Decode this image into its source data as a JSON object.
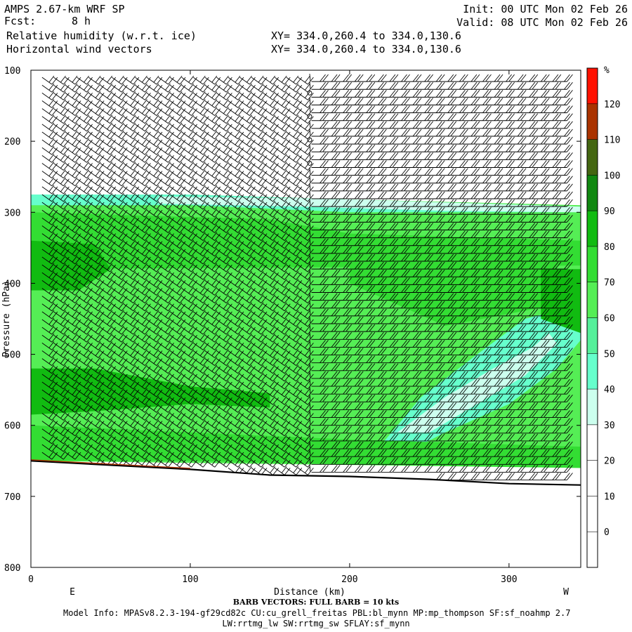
{
  "header": {
    "model": "AMPS 2.67-km WRF SP",
    "fcst_label": "Fcst:",
    "fcst_value": "8 h",
    "field1": "Relative humidity (w.r.t. ice)",
    "field2": "Horizontal wind vectors",
    "xy1": "XY= 334.0,260.4 to 334.0,130.6",
    "xy2": "XY= 334.0,260.4 to 334.0,130.6",
    "init": "Init: 00 UTC Mon 02 Feb 26",
    "valid": "Valid: 08 UTC Mon 02 Feb 26"
  },
  "footer": {
    "barb_note": "BARB VECTORS: FULL BARB = 10 kts",
    "model_info": "Model Info: MPASv8.2.3-194-gf29cd82c CU:cu_grell_freitas PBL:bl_mynn MP:mp_thompson SF:sf_noahmp 2.7",
    "model_info2": "LW:rrtmg_lw SW:rrtmg_sw SFLAY:sf_mynn"
  },
  "chart_data": {
    "type": "heatmap",
    "title": "Relative humidity (w.r.t. ice)",
    "xlabel": "Distance (km)",
    "ylabel": "Pressure (hPa)",
    "xlim": [
      0,
      345
    ],
    "ylim": [
      800,
      100
    ],
    "x_ticks": [
      0,
      100,
      200,
      300
    ],
    "y_ticks": [
      100,
      200,
      300,
      400,
      500,
      600,
      700,
      800
    ],
    "x_end_labels": {
      "left": "E",
      "right": "W"
    },
    "colorbar": {
      "unit": "%",
      "labels": [
        0,
        10,
        20,
        30,
        40,
        50,
        60,
        70,
        80,
        90,
        100,
        110,
        120
      ],
      "bins": [
        {
          "lo": -10,
          "hi": 30,
          "color": "#ffffff"
        },
        {
          "lo": 30,
          "hi": 40,
          "color": "#ccffee"
        },
        {
          "lo": 40,
          "hi": 50,
          "color": "#66ffcc"
        },
        {
          "lo": 50,
          "hi": 60,
          "color": "#55f09a"
        },
        {
          "lo": 60,
          "hi": 70,
          "color": "#55ee55"
        },
        {
          "lo": 70,
          "hi": 80,
          "color": "#33dd33"
        },
        {
          "lo": 80,
          "hi": 90,
          "color": "#11bb11"
        },
        {
          "lo": 90,
          "hi": 100,
          "color": "#118811"
        },
        {
          "lo": 100,
          "hi": 110,
          "color": "#446611"
        },
        {
          "lo": 110,
          "hi": 120,
          "color": "#aa3300"
        },
        {
          "lo": 120,
          "hi": 130,
          "color": "#ff1100"
        }
      ]
    },
    "rh_regions": [
      {
        "name": "mid-troposphere moist layer",
        "rh": 65,
        "poly": [
          [
            0,
            275
          ],
          [
            100,
            275
          ],
          [
            200,
            282
          ],
          [
            345,
            290
          ],
          [
            345,
            660
          ],
          [
            0,
            650
          ]
        ]
      },
      {
        "name": "upper moist band",
        "rh": 45,
        "poly": [
          [
            0,
            275
          ],
          [
            100,
            275
          ],
          [
            200,
            282
          ],
          [
            345,
            292
          ],
          [
            345,
            300
          ],
          [
            200,
            300
          ],
          [
            100,
            290
          ],
          [
            0,
            290
          ]
        ]
      },
      {
        "name": "top fringe",
        "rh": 35,
        "poly": [
          [
            80,
            278
          ],
          [
            170,
            280
          ],
          [
            345,
            292
          ],
          [
            345,
            300
          ],
          [
            260,
            298
          ],
          [
            170,
            292
          ],
          [
            80,
            288
          ]
        ]
      },
      {
        "name": "western moist core",
        "rh": 75,
        "poly": [
          [
            0,
            300
          ],
          [
            150,
            310
          ],
          [
            200,
            330
          ],
          [
            345,
            340
          ],
          [
            345,
            375
          ],
          [
            0,
            380
          ]
        ]
      },
      {
        "name": "eastern moist core",
        "rh": 75,
        "poly": [
          [
            200,
            335
          ],
          [
            260,
            340
          ],
          [
            330,
            350
          ],
          [
            330,
            430
          ],
          [
            260,
            460
          ],
          [
            200,
            400
          ]
        ]
      },
      {
        "name": "dry intrusion",
        "rh": 45,
        "poly": [
          [
            215,
            640
          ],
          [
            245,
            560
          ],
          [
            280,
            500
          ],
          [
            310,
            450
          ],
          [
            345,
            430
          ],
          [
            345,
            480
          ],
          [
            330,
            520
          ],
          [
            300,
            570
          ],
          [
            260,
            610
          ],
          [
            225,
            650
          ]
        ]
      },
      {
        "name": "dry intrusion core",
        "rh": 35,
        "poly": [
          [
            230,
            610
          ],
          [
            260,
            560
          ],
          [
            290,
            520
          ],
          [
            315,
            490
          ],
          [
            325,
            470
          ],
          [
            330,
            485
          ],
          [
            310,
            530
          ],
          [
            280,
            570
          ],
          [
            250,
            610
          ]
        ]
      },
      {
        "name": "western lower moist",
        "rh": 80,
        "poly": [
          [
            0,
            520
          ],
          [
            40,
            520
          ],
          [
            100,
            545
          ],
          [
            150,
            555
          ],
          [
            150,
            575
          ],
          [
            100,
            570
          ],
          [
            40,
            580
          ],
          [
            0,
            585
          ]
        ]
      },
      {
        "name": "western low moist",
        "rh": 85,
        "poly": [
          [
            0,
            340
          ],
          [
            40,
            345
          ],
          [
            50,
            380
          ],
          [
            30,
            410
          ],
          [
            0,
            410
          ]
        ]
      },
      {
        "name": "eastern low moist",
        "rh": 85,
        "poly": [
          [
            320,
            380
          ],
          [
            345,
            380
          ],
          [
            345,
            470
          ],
          [
            320,
            450
          ]
        ]
      },
      {
        "name": "surface near-saturation",
        "rh": 75,
        "poly": [
          [
            0,
            600
          ],
          [
            100,
            610
          ],
          [
            200,
            620
          ],
          [
            345,
            630
          ],
          [
            345,
            660
          ],
          [
            200,
            655
          ],
          [
            100,
            650
          ],
          [
            0,
            650
          ]
        ]
      }
    ],
    "terrain_pressure": [
      [
        0,
        650
      ],
      [
        50,
        656
      ],
      [
        100,
        662
      ],
      [
        150,
        670
      ],
      [
        200,
        672
      ],
      [
        250,
        676
      ],
      [
        300,
        682
      ],
      [
        345,
        684
      ]
    ],
    "barb_note": "FULL BARB = 10 kts"
  }
}
